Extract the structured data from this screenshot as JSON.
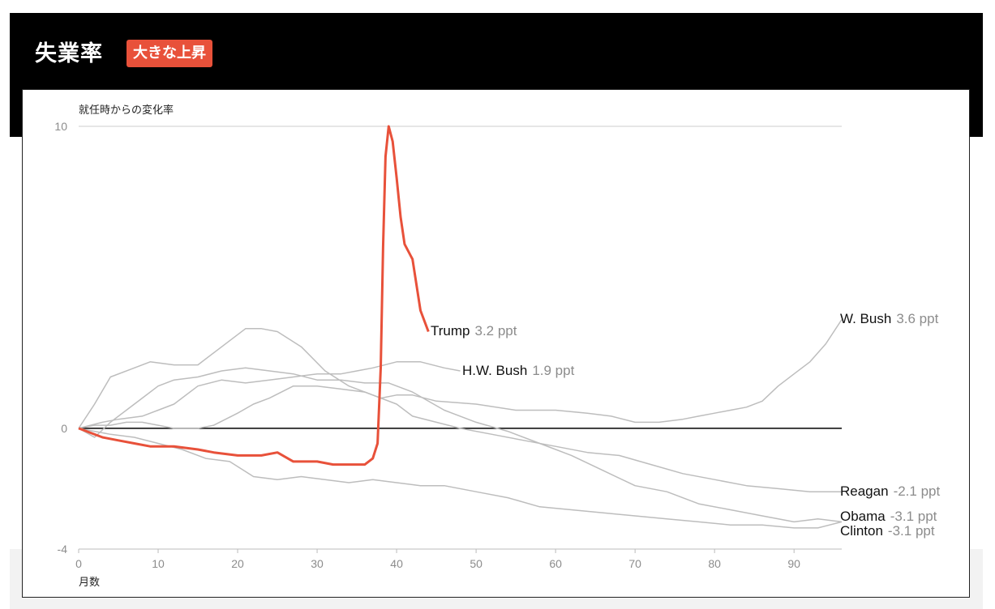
{
  "header": {
    "title": "失業率",
    "badge": "大きな上昇"
  },
  "colors": {
    "trump": "#e8513a",
    "others": "#bdbdbd",
    "zero_line": "#000000",
    "header_bg": "#000000",
    "badge_bg": "#e8513a"
  },
  "chart_data": {
    "type": "line",
    "ylabel": "就任時からの変化率",
    "xlabel": "月数",
    "xlim": [
      0,
      96
    ],
    "ylim": [
      -4,
      10
    ],
    "x_ticks": [
      "0",
      "10",
      "20",
      "30",
      "40",
      "50",
      "60",
      "70",
      "80",
      "90"
    ],
    "y_ticks": [
      "10",
      "0",
      "-4"
    ],
    "grid": "horizontal line at 10, zero baseline",
    "series": [
      {
        "name": "Trump",
        "value_label": "3.2 ppt",
        "highlight": true,
        "points": [
          [
            0,
            0
          ],
          [
            3,
            -0.3
          ],
          [
            5,
            -0.4
          ],
          [
            7,
            -0.5
          ],
          [
            9,
            -0.6
          ],
          [
            12,
            -0.6
          ],
          [
            15,
            -0.7
          ],
          [
            17,
            -0.8
          ],
          [
            20,
            -0.9
          ],
          [
            23,
            -0.9
          ],
          [
            25,
            -0.8
          ],
          [
            27,
            -1.1
          ],
          [
            30,
            -1.1
          ],
          [
            32,
            -1.2
          ],
          [
            34,
            -1.2
          ],
          [
            36,
            -1.2
          ],
          [
            37,
            -1.0
          ],
          [
            37.6,
            -0.5
          ],
          [
            38,
            2.0
          ],
          [
            38.3,
            6.0
          ],
          [
            38.6,
            9.0
          ],
          [
            39,
            10.0
          ],
          [
            39.5,
            9.5
          ],
          [
            40,
            8.3
          ],
          [
            40.5,
            7.0
          ],
          [
            41,
            6.1
          ],
          [
            42,
            5.6
          ],
          [
            43,
            3.9
          ],
          [
            44,
            3.2
          ]
        ]
      },
      {
        "name": "H.W. Bush",
        "value_label": "1.9 ppt",
        "points": [
          [
            0,
            0
          ],
          [
            3,
            0.2
          ],
          [
            5,
            0.3
          ],
          [
            8,
            0.4
          ],
          [
            10,
            0.6
          ],
          [
            12,
            0.8
          ],
          [
            15,
            1.4
          ],
          [
            18,
            1.6
          ],
          [
            21,
            1.5
          ],
          [
            24,
            1.6
          ],
          [
            27,
            1.7
          ],
          [
            30,
            1.8
          ],
          [
            33,
            1.8
          ],
          [
            35,
            1.9
          ],
          [
            37,
            2.0
          ],
          [
            40,
            2.2
          ],
          [
            43,
            2.2
          ],
          [
            46,
            2.0
          ],
          [
            48,
            1.9
          ]
        ]
      },
      {
        "name": "W. Bush",
        "value_label": "3.6 ppt",
        "points": [
          [
            0,
            0
          ],
          [
            2,
            0.1
          ],
          [
            4,
            0.1
          ],
          [
            6,
            0.2
          ],
          [
            8,
            0.2
          ],
          [
            10,
            0.1
          ],
          [
            12,
            0.0
          ],
          [
            15,
            0.0
          ],
          [
            17,
            0.1
          ],
          [
            20,
            0.5
          ],
          [
            22,
            0.8
          ],
          [
            24,
            1.0
          ],
          [
            27,
            1.4
          ],
          [
            30,
            1.4
          ],
          [
            33,
            1.3
          ],
          [
            36,
            1.2
          ],
          [
            38,
            1.0
          ],
          [
            40,
            1.1
          ],
          [
            42,
            1.1
          ],
          [
            45,
            0.9
          ],
          [
            50,
            0.8
          ],
          [
            55,
            0.6
          ],
          [
            60,
            0.6
          ],
          [
            64,
            0.5
          ],
          [
            67,
            0.4
          ],
          [
            70,
            0.2
          ],
          [
            73,
            0.2
          ],
          [
            76,
            0.3
          ],
          [
            78,
            0.4
          ],
          [
            80,
            0.5
          ],
          [
            82,
            0.6
          ],
          [
            84,
            0.7
          ],
          [
            86,
            0.9
          ],
          [
            88,
            1.4
          ],
          [
            90,
            1.8
          ],
          [
            92,
            2.2
          ],
          [
            94,
            2.8
          ],
          [
            96,
            3.6
          ]
        ]
      },
      {
        "name": "Reagan",
        "value_label": "-2.1 ppt",
        "points": [
          [
            0,
            0
          ],
          [
            2,
            0.8
          ],
          [
            4,
            1.7
          ],
          [
            7,
            2.0
          ],
          [
            9,
            2.2
          ],
          [
            12,
            2.1
          ],
          [
            15,
            2.1
          ],
          [
            18,
            2.7
          ],
          [
            21,
            3.3
          ],
          [
            23,
            3.3
          ],
          [
            25,
            3.2
          ],
          [
            28,
            2.7
          ],
          [
            31,
            1.9
          ],
          [
            34,
            1.4
          ],
          [
            37,
            1.1
          ],
          [
            40,
            0.8
          ],
          [
            42,
            0.4
          ],
          [
            45,
            0.2
          ],
          [
            48,
            0.0
          ],
          [
            52,
            -0.2
          ],
          [
            56,
            -0.4
          ],
          [
            60,
            -0.6
          ],
          [
            64,
            -0.8
          ],
          [
            68,
            -0.9
          ],
          [
            72,
            -1.2
          ],
          [
            76,
            -1.5
          ],
          [
            80,
            -1.7
          ],
          [
            84,
            -1.9
          ],
          [
            88,
            -2.0
          ],
          [
            92,
            -2.1
          ],
          [
            96,
            -2.1
          ]
        ]
      },
      {
        "name": "Obama",
        "value_label": "-3.1 ppt",
        "points": [
          [
            0,
            0
          ],
          [
            2,
            -0.3
          ],
          [
            4,
            0.2
          ],
          [
            6,
            0.6
          ],
          [
            8,
            1.0
          ],
          [
            10,
            1.4
          ],
          [
            12,
            1.6
          ],
          [
            15,
            1.7
          ],
          [
            18,
            1.9
          ],
          [
            21,
            2.0
          ],
          [
            24,
            1.9
          ],
          [
            27,
            1.8
          ],
          [
            30,
            1.6
          ],
          [
            33,
            1.6
          ],
          [
            36,
            1.5
          ],
          [
            39,
            1.5
          ],
          [
            42,
            1.2
          ],
          [
            46,
            0.6
          ],
          [
            50,
            0.2
          ],
          [
            54,
            -0.1
          ],
          [
            58,
            -0.5
          ],
          [
            62,
            -0.9
          ],
          [
            66,
            -1.4
          ],
          [
            70,
            -1.9
          ],
          [
            74,
            -2.1
          ],
          [
            78,
            -2.5
          ],
          [
            82,
            -2.7
          ],
          [
            86,
            -2.9
          ],
          [
            90,
            -3.1
          ],
          [
            93,
            -3.0
          ],
          [
            96,
            -3.1
          ]
        ]
      },
      {
        "name": "Clinton",
        "value_label": "-3.1 ppt",
        "points": [
          [
            0,
            0
          ],
          [
            2,
            -0.1
          ],
          [
            4,
            -0.2
          ],
          [
            7,
            -0.3
          ],
          [
            10,
            -0.5
          ],
          [
            13,
            -0.7
          ],
          [
            16,
            -1.0
          ],
          [
            19,
            -1.1
          ],
          [
            22,
            -1.6
          ],
          [
            25,
            -1.7
          ],
          [
            28,
            -1.6
          ],
          [
            31,
            -1.7
          ],
          [
            34,
            -1.8
          ],
          [
            37,
            -1.7
          ],
          [
            40,
            -1.8
          ],
          [
            43,
            -1.9
          ],
          [
            46,
            -1.9
          ],
          [
            50,
            -2.1
          ],
          [
            54,
            -2.3
          ],
          [
            58,
            -2.6
          ],
          [
            62,
            -2.7
          ],
          [
            66,
            -2.8
          ],
          [
            70,
            -2.9
          ],
          [
            74,
            -3.0
          ],
          [
            78,
            -3.1
          ],
          [
            82,
            -3.2
          ],
          [
            86,
            -3.2
          ],
          [
            90,
            -3.3
          ],
          [
            93,
            -3.3
          ],
          [
            96,
            -3.1
          ]
        ]
      }
    ]
  }
}
